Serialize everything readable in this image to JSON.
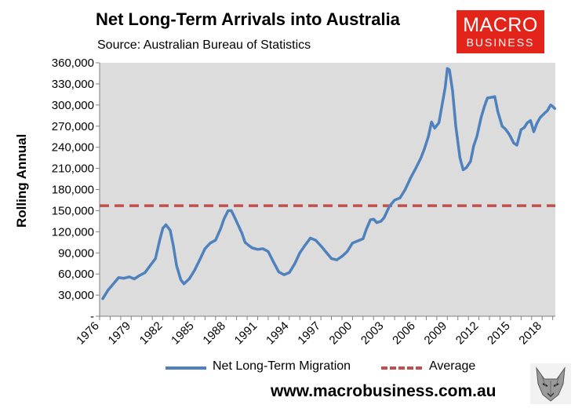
{
  "header": {
    "title": "Net Long-Term Arrivals into Australia",
    "subtitle": "Source: Australian Bureau of Statistics"
  },
  "logo": {
    "line1": "MACRO",
    "line2": "BUSINESS"
  },
  "footer": {
    "url": "www.macrobusiness.com.au"
  },
  "colors": {
    "series": "#4f81bd",
    "average": "#c0504d",
    "plot_bg": "#dcdcdc",
    "brand": "#e3241b"
  },
  "chart_data": {
    "type": "line",
    "ylabel": "Rolling Annual",
    "xlabel": "",
    "ylim": [
      0,
      360000
    ],
    "xlim": [
      1976,
      2019.25
    ],
    "ytick_values": [
      0,
      30000,
      60000,
      90000,
      120000,
      150000,
      180000,
      210000,
      240000,
      270000,
      300000,
      330000,
      360000
    ],
    "ytick_labels": [
      "-",
      "30,000",
      "60,000",
      "90,000",
      "120,000",
      "150,000",
      "180,000",
      "210,000",
      "240,000",
      "270,000",
      "300,000",
      "330,000",
      "360,000"
    ],
    "xtick_labels": [
      "1976",
      "1979",
      "1982",
      "1985",
      "1988",
      "1991",
      "1994",
      "1997",
      "2000",
      "2003",
      "2006",
      "2009",
      "2012",
      "2015",
      "2018"
    ],
    "grid": false,
    "legend_position": "bottom",
    "series": [
      {
        "name": "Net Long-Term Migration",
        "x": [
          1976.3,
          1976.8,
          1977.3,
          1977.8,
          1978.3,
          1978.8,
          1979.3,
          1979.8,
          1980.3,
          1980.8,
          1981.3,
          1981.7,
          1982.0,
          1982.3,
          1982.7,
          1983.0,
          1983.3,
          1983.7,
          1984.0,
          1984.5,
          1985.0,
          1985.5,
          1986.0,
          1986.5,
          1987.0,
          1987.5,
          1987.8,
          1988.2,
          1988.5,
          1988.8,
          1989.2,
          1989.5,
          1989.8,
          1990.2,
          1990.5,
          1991.0,
          1991.5,
          1992.0,
          1992.5,
          1993.0,
          1993.5,
          1994.0,
          1994.5,
          1995.0,
          1995.5,
          1996.0,
          1996.5,
          1997.0,
          1997.5,
          1998.0,
          1998.5,
          1999.0,
          1999.5,
          2000.0,
          2000.5,
          2001.0,
          2001.3,
          2001.7,
          2002.0,
          2002.3,
          2002.7,
          2003.0,
          2003.5,
          2004.0,
          2004.5,
          2005.0,
          2005.5,
          2006.0,
          2006.5,
          2006.8,
          2007.2,
          2007.5,
          2007.8,
          2008.2,
          2008.5,
          2008.8,
          2009.0,
          2009.2,
          2009.5,
          2009.8,
          2010.2,
          2010.5,
          2010.8,
          2011.2,
          2011.5,
          2011.8,
          2012.2,
          2012.5,
          2012.8,
          2013.2,
          2013.5,
          2013.8,
          2014.2,
          2014.5,
          2014.8,
          2015.0,
          2015.3,
          2015.6,
          2016.0,
          2016.3,
          2016.6,
          2016.9,
          2017.2,
          2017.5,
          2017.8,
          2018.2,
          2018.5,
          2018.8,
          2019.0,
          2019.2
        ],
        "values": [
          25000,
          37000,
          46000,
          55000,
          54000,
          56000,
          53000,
          58000,
          62000,
          72000,
          82000,
          108000,
          125000,
          130000,
          122000,
          100000,
          72000,
          52000,
          46000,
          53000,
          65000,
          80000,
          96000,
          104000,
          108000,
          125000,
          138000,
          150000,
          150000,
          141000,
          128000,
          118000,
          105000,
          100000,
          97000,
          95000,
          96000,
          92000,
          77000,
          63000,
          59000,
          62000,
          74000,
          90000,
          101000,
          111000,
          108000,
          100000,
          91000,
          82000,
          80000,
          85000,
          92000,
          104000,
          107000,
          110000,
          123000,
          137000,
          138000,
          133000,
          135000,
          140000,
          156000,
          165000,
          168000,
          180000,
          196000,
          210000,
          225000,
          237000,
          255000,
          276000,
          267000,
          275000,
          300000,
          325000,
          352000,
          350000,
          320000,
          270000,
          225000,
          208000,
          211000,
          220000,
          242000,
          255000,
          282000,
          297000,
          310000,
          311000,
          312000,
          290000,
          270000,
          266000,
          260000,
          255000,
          246000,
          243000,
          265000,
          268000,
          275000,
          278000,
          262000,
          274000,
          282000,
          288000,
          292000,
          300000,
          298000,
          295000
        ]
      },
      {
        "name": "Average",
        "value": 157000
      }
    ]
  }
}
